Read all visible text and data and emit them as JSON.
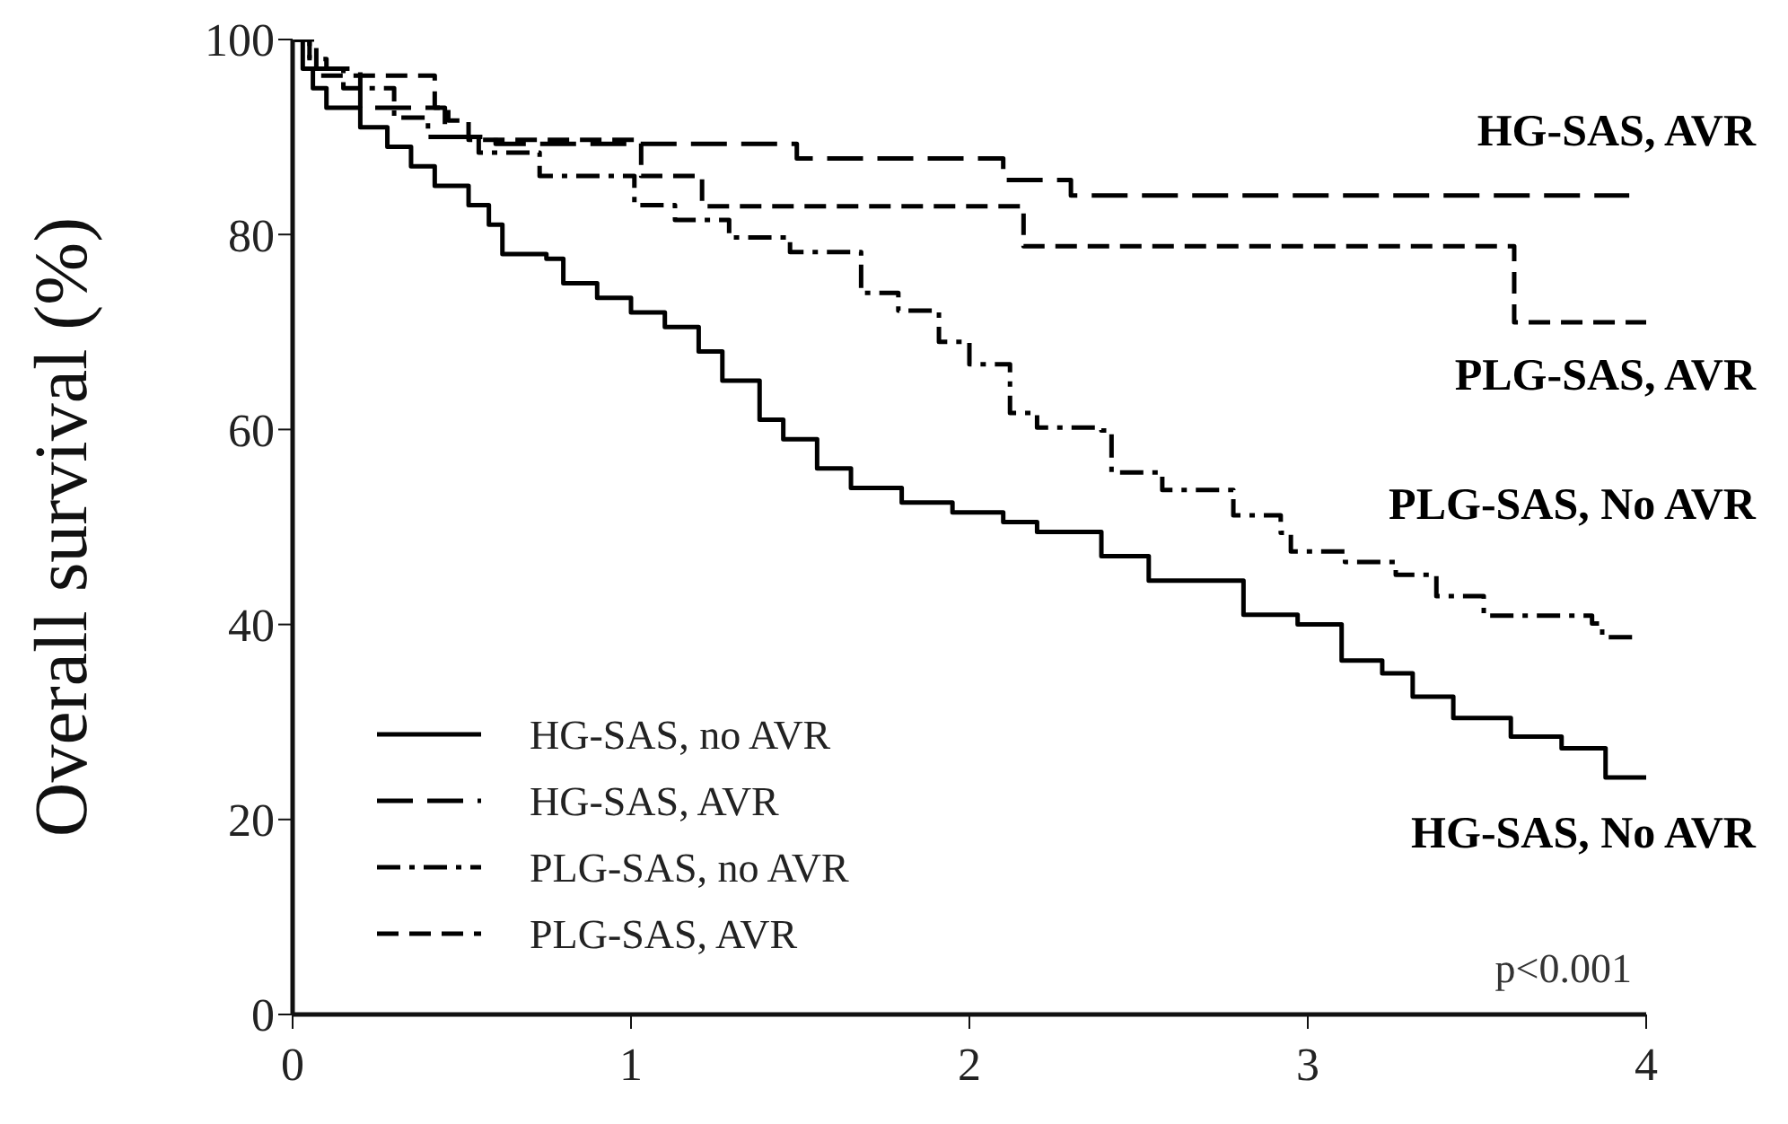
{
  "chart_data": {
    "type": "step",
    "ylabel": "Overall survival (%)",
    "xlim": [
      0,
      4
    ],
    "xticks": [
      0,
      1,
      2,
      3,
      4
    ],
    "ylim": [
      0,
      100
    ],
    "yticks": [
      0,
      20,
      40,
      60,
      80,
      100
    ],
    "legend": "bottom left",
    "grid": false,
    "series": [
      {
        "name": "HG-SAS, no AVR",
        "color": "#000000",
        "line_style": "solid",
        "x": [
          0,
          0.03,
          0.06,
          0.1,
          0.2,
          0.28,
          0.35,
          0.42,
          0.52,
          0.58,
          0.62,
          0.75,
          0.8,
          0.9,
          1.0,
          1.1,
          1.2,
          1.27,
          1.38,
          1.45,
          1.55,
          1.65,
          1.8,
          1.95,
          2.1,
          2.2,
          2.39,
          2.53,
          2.74,
          2.81,
          2.97,
          3.1,
          3.22,
          3.31,
          3.43,
          3.6,
          3.75,
          3.88,
          4.0
        ],
        "values": [
          100,
          97,
          95,
          93,
          91,
          89,
          87,
          85,
          83,
          81,
          78,
          77.5,
          75,
          73.5,
          72,
          70.5,
          68,
          65,
          61,
          59,
          56,
          54,
          52.5,
          51.5,
          50.5,
          49.5,
          47,
          44.5,
          44.5,
          41,
          40,
          36.3,
          35,
          32.6,
          30.4,
          28.5,
          27.3,
          24.3,
          24.3
        ]
      },
      {
        "name": "HG-SAS, AVR",
        "color": "#000000",
        "line_style": "longdash",
        "x": [
          0,
          0.05,
          0.1,
          0.2,
          0.45,
          0.6,
          1.49,
          2.1,
          2.3,
          3.95
        ],
        "values": [
          100,
          98,
          97,
          93,
          90,
          89.3,
          87.8,
          85.6,
          84,
          84
        ]
      },
      {
        "name": "PLG-SAS, no AVR",
        "color": "#000000",
        "line_style": "dashdot",
        "x": [
          0,
          0.05,
          0.15,
          0.3,
          0.4,
          0.55,
          0.73,
          1.01,
          1.13,
          1.29,
          1.47,
          1.68,
          1.79,
          1.91,
          2.0,
          2.12,
          2.2,
          2.39,
          2.42,
          2.57,
          2.78,
          2.92,
          2.95,
          3.11,
          3.26,
          3.38,
          3.52,
          3.84,
          3.87,
          3.96
        ],
        "values": [
          100,
          97,
          95,
          92,
          90,
          88.4,
          86,
          83,
          81.5,
          79.7,
          78.2,
          74,
          72.2,
          69,
          66.7,
          61.7,
          60.2,
          59.9,
          55.6,
          53.8,
          51.2,
          49.4,
          47.5,
          46.4,
          45.1,
          42.9,
          40.9,
          40.1,
          38.7,
          38.7
        ]
      },
      {
        "name": "PLG-SAS, AVR",
        "color": "#000000",
        "line_style": "dashed",
        "x": [
          0,
          0.07,
          0.42,
          0.46,
          0.52,
          1.03,
          1.21,
          2.16,
          3.61,
          4.0
        ],
        "values": [
          100,
          96.3,
          93,
          91.7,
          89.7,
          86,
          82.9,
          78.8,
          71,
          71
        ]
      }
    ],
    "annotations": [
      "HG-SAS, AVR",
      "PLG-SAS, AVR",
      "PLG-SAS, No AVR",
      "HG-SAS, No AVR",
      "p<0.001"
    ]
  }
}
